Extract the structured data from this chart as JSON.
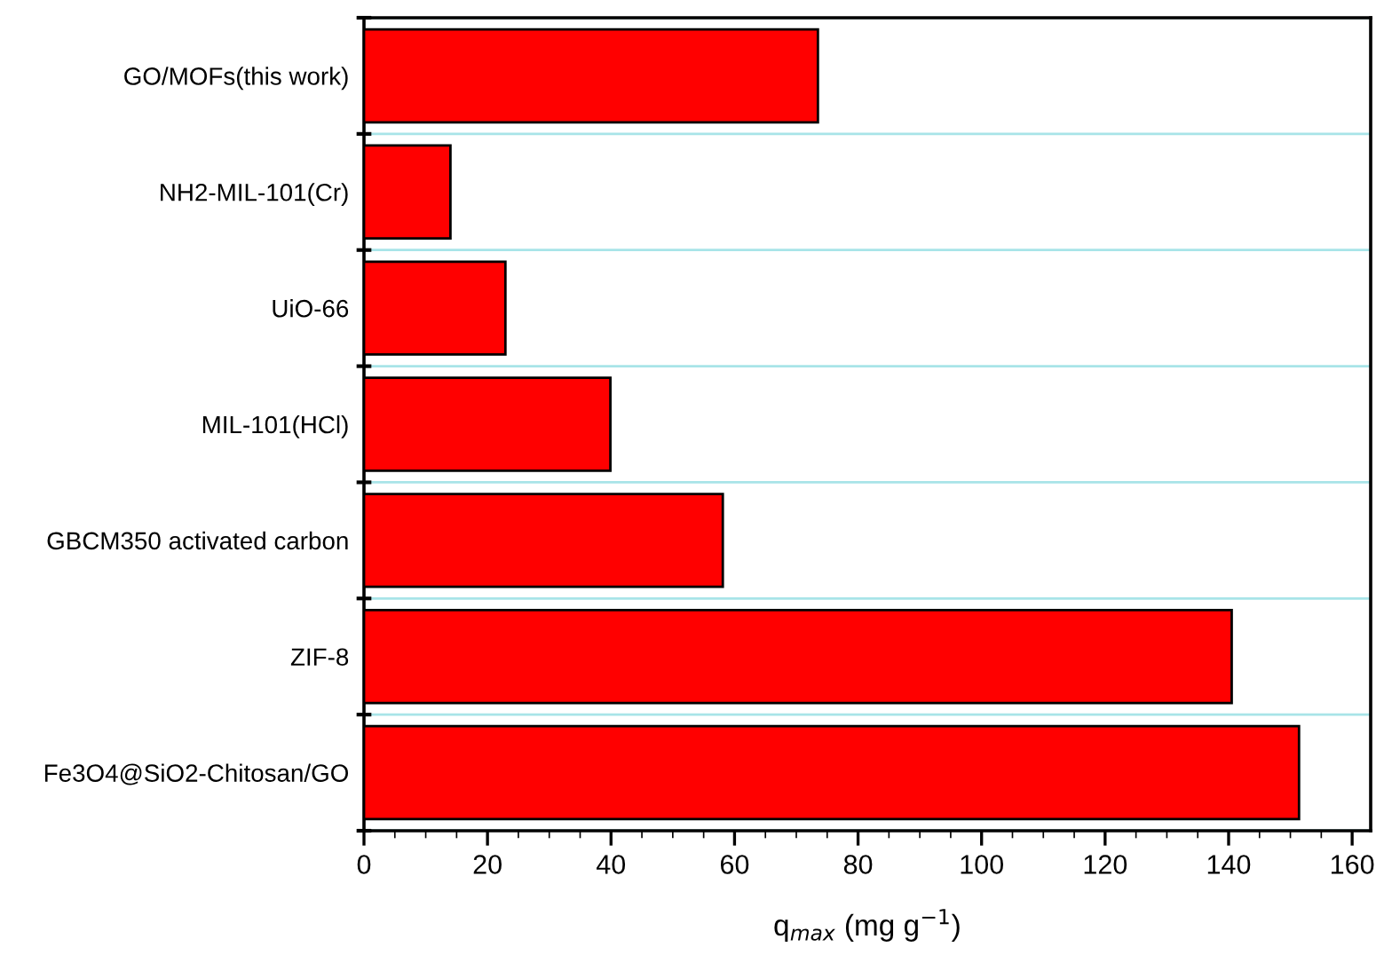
{
  "chart_data": {
    "type": "bar",
    "orientation": "horizontal",
    "xlabel": "q$_{max}$ (mg g$^{−1}$)",
    "categories": [
      "GO/MOFs(this work)",
      "NH2-MIL-101(Cr)",
      "UiO-66",
      "MIL-101(HCl)",
      "GBCM350 activated carbon",
      "ZIF-8",
      "Fe3O4@SiO2-Chitosan/GO"
    ],
    "values": [
      73.5,
      14.0,
      22.9,
      39.9,
      58.1,
      140.5,
      151.4
    ],
    "color": "#ff0000",
    "xlim": [
      0,
      163
    ],
    "xticks": [
      0,
      20,
      40,
      60,
      80,
      100,
      120,
      140,
      160
    ],
    "grid": "y"
  }
}
